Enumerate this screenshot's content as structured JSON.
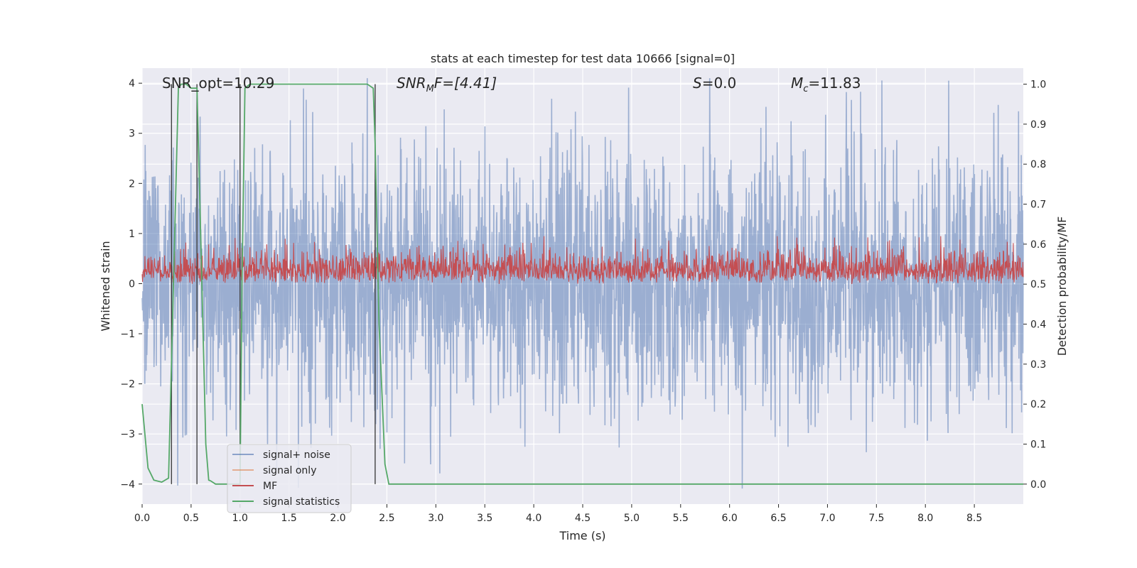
{
  "chart_data": {
    "type": "line",
    "title": "stats at each timestep for test data 10666 [signal=0]",
    "xlabel": "Time (s)",
    "ylabel": "Whitened strain",
    "ylabel_right": "Detection probability/MF",
    "xlim": [
      0,
      9.0
    ],
    "ylim": [
      -4.4,
      4.3
    ],
    "ylim_right": [
      -0.05,
      1.04
    ],
    "x_ticks": [
      "0.0",
      "0.5",
      "1.0",
      "1.5",
      "2.0",
      "2.5",
      "3.0",
      "3.5",
      "4.0",
      "4.5",
      "5.0",
      "5.5",
      "6.0",
      "6.5",
      "7.0",
      "7.5",
      "8.0",
      "8.5"
    ],
    "y_ticks": [
      "4",
      "3",
      "2",
      "1",
      "0",
      "−1",
      "−2",
      "−3",
      "−4"
    ],
    "y_ticks_right": [
      "1.0",
      "0.9",
      "0.8",
      "0.7",
      "0.6",
      "0.5",
      "0.4",
      "0.3",
      "0.2",
      "0.1",
      "0.0"
    ],
    "grid": true,
    "legend_position": "lower-left",
    "annotations": {
      "snr_opt": "SNR_opt=10.29",
      "snr_mf_base": "SNR",
      "snr_mf_sub": "M",
      "snr_mf_rest": "F=[4.41]",
      "s": "S",
      "s_rest": "=0.0",
      "mc_base": "M",
      "mc_sub": "c",
      "mc_rest": "=11.83"
    },
    "series": [
      {
        "name": "signal+ noise",
        "color": "#4c72b0",
        "alpha": 0.5,
        "axis": "left",
        "description_amplitude": 1.3
      },
      {
        "name": "signal only",
        "color": "#dd8452",
        "alpha": 0.5,
        "axis": "left"
      },
      {
        "name": "MF",
        "color": "#c44e52",
        "axis": "right",
        "baseline": 0.5,
        "range": [
          0.5,
          0.62
        ]
      },
      {
        "name": "signal statistics",
        "color": "#55a868",
        "axis": "right",
        "x": [
          0.0,
          0.06,
          0.12,
          0.2,
          0.27,
          0.32,
          0.37,
          0.4,
          0.45,
          0.5,
          0.53,
          0.56,
          0.6,
          0.65,
          0.68,
          0.7,
          0.75,
          0.8,
          0.85,
          0.95,
          1.0,
          1.02,
          1.05,
          1.1,
          1.2,
          2.0,
          2.3,
          2.36,
          2.38,
          2.42,
          2.48,
          2.52,
          4.0,
          6.0,
          8.0,
          9.0
        ],
        "y": [
          0.2,
          0.04,
          0.01,
          0.005,
          0.015,
          0.5,
          0.99,
          1.0,
          1.0,
          0.99,
          0.99,
          0.99,
          0.6,
          0.1,
          0.01,
          0.008,
          0.0,
          0.0,
          0.0,
          0.0,
          0.0,
          0.5,
          0.99,
          1.0,
          1.0,
          1.0,
          1.0,
          0.99,
          0.85,
          0.4,
          0.05,
          0.0,
          0.0,
          0.0,
          0.0,
          0.0
        ]
      }
    ],
    "vertical_markers_x": [
      0.3,
      0.56,
      1.0,
      2.38
    ],
    "legend": [
      "signal+ noise",
      "signal only",
      "MF",
      "signal statistics"
    ]
  }
}
